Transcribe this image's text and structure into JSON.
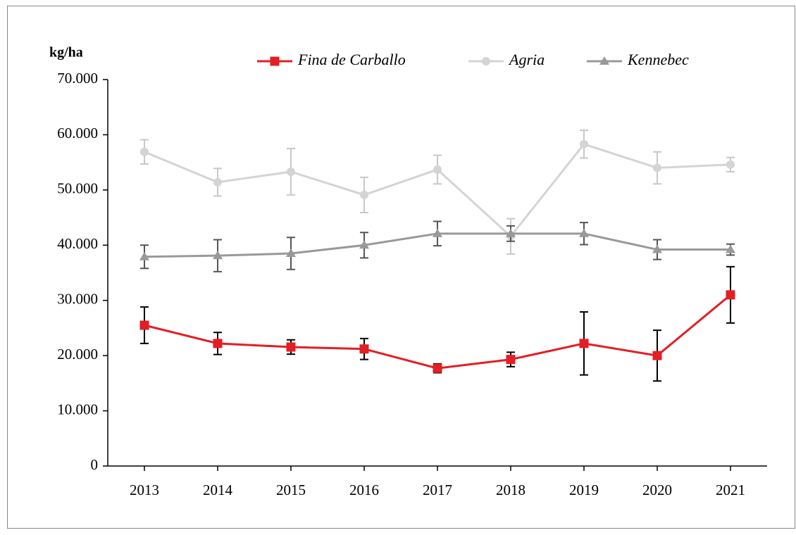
{
  "chart_data": {
    "type": "line",
    "y_label": "kg/ha",
    "categories": [
      "2013",
      "2014",
      "2015",
      "2016",
      "2017",
      "2018",
      "2019",
      "2020",
      "2021"
    ],
    "series": [
      {
        "name": "Fina de Carballo",
        "color": "#e31e24",
        "error_color": "#000000",
        "marker": "square",
        "values": [
          25500,
          22200,
          21550,
          21200,
          17700,
          19300,
          22200,
          20000,
          31000
        ],
        "errors": [
          3300,
          2000,
          1300,
          1900,
          800,
          1300,
          5700,
          4600,
          5100
        ]
      },
      {
        "name": "Agria",
        "color": "#d4d4d4",
        "error_color": "#c8c8c8",
        "marker": "circle",
        "values": [
          56900,
          51400,
          53300,
          49100,
          53700,
          41600,
          58300,
          54000,
          54600
        ],
        "errors": [
          2200,
          2500,
          4200,
          3200,
          2600,
          3200,
          2500,
          2900,
          1300
        ]
      },
      {
        "name": "Kennebec",
        "color": "#999999",
        "error_color": "#555555",
        "marker": "triangle",
        "values": [
          37900,
          38100,
          38500,
          40000,
          42100,
          42100,
          42100,
          39200,
          39200
        ],
        "errors": [
          2100,
          2900,
          2900,
          2300,
          2200,
          1400,
          2000,
          1800,
          1000
        ]
      }
    ],
    "ylim": [
      0,
      70000
    ],
    "yticks": [
      0,
      {
        "value": 10000,
        "label": "10.000"
      },
      {
        "value": 20000,
        "label": "20.000"
      },
      {
        "value": 30000,
        "label": "30.000"
      },
      {
        "value": 40000,
        "label": "40.000"
      },
      {
        "value": 50000,
        "label": "50.000"
      },
      {
        "value": 60000,
        "label": "60.000"
      },
      {
        "value": 70000,
        "label": "70.000"
      }
    ],
    "legend": "top"
  }
}
